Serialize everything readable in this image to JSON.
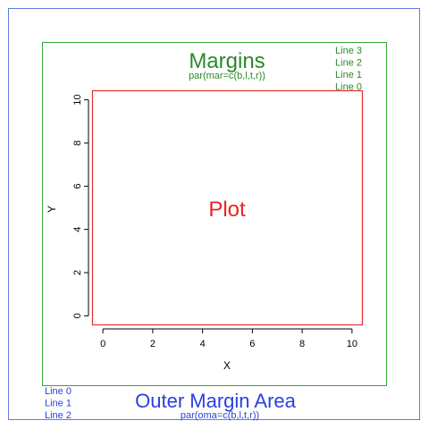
{
  "colors": {
    "outer_border": "#5a7fd9",
    "figure_border": "#33aa33",
    "plot_border": "#e03030",
    "margin_text": "#2a8a2a",
    "outer_text": "#2a3fe0",
    "plot_text": "#ee2222",
    "axis": "#000000"
  },
  "margins": {
    "title": "Margins",
    "code": "par(mar=c(b,l,t,r))",
    "lines": [
      "Line 3",
      "Line 2",
      "Line 1",
      "Line 0"
    ]
  },
  "outer": {
    "title": "Outer Margin Area",
    "code": "par(oma=c(b,l,t,r))",
    "lines": [
      "Line 0",
      "Line 1",
      "Line 2"
    ]
  },
  "plot": {
    "label": "Plot",
    "xlabel": "X",
    "ylabel": "Y",
    "xlim": [
      -0.4,
      10.4
    ],
    "ylim": [
      -0.4,
      10.4
    ],
    "xticks": [
      "0",
      "2",
      "4",
      "6",
      "8",
      "10"
    ],
    "yticks": [
      "0",
      "2",
      "4",
      "6",
      "8",
      "10"
    ]
  }
}
